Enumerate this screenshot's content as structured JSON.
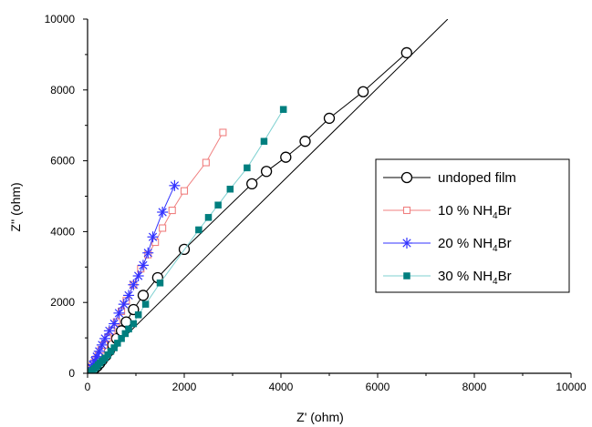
{
  "chart_data": {
    "type": "scatter",
    "title": "",
    "xlabel": "Z' (ohm)",
    "ylabel": "Z'' (ohm)",
    "xlim": [
      0,
      10000
    ],
    "ylim": [
      0,
      10000
    ],
    "x_ticks": [
      0,
      2000,
      4000,
      6000,
      8000,
      10000
    ],
    "y_ticks": [
      0,
      2000,
      4000,
      6000,
      8000,
      10000
    ],
    "x_tick_labels": [
      "0",
      "2000",
      "4000",
      "6000",
      "8000",
      "10000"
    ],
    "y_tick_labels": [
      "0",
      "2000",
      "4000",
      "6000",
      "8000",
      "10000"
    ],
    "grid": false,
    "legend_position": "right-center",
    "series": [
      {
        "name": "undoped film",
        "legend_main": "undoped film",
        "legend_sub": "",
        "legend_tail": "",
        "marker": "open-circle",
        "line_color": "#000000",
        "marker_color": "#000000",
        "points": [
          [
            60,
            40
          ],
          [
            100,
            90
          ],
          [
            150,
            140
          ],
          [
            200,
            200
          ],
          [
            250,
            280
          ],
          [
            300,
            370
          ],
          [
            380,
            500
          ],
          [
            450,
            640
          ],
          [
            520,
            800
          ],
          [
            600,
            980
          ],
          [
            700,
            1200
          ],
          [
            800,
            1450
          ],
          [
            950,
            1800
          ],
          [
            1150,
            2200
          ],
          [
            1450,
            2700
          ],
          [
            2000,
            3500
          ],
          [
            3400,
            5350
          ],
          [
            3700,
            5700
          ],
          [
            4100,
            6100
          ],
          [
            4500,
            6550
          ],
          [
            5000,
            7200
          ],
          [
            5700,
            7950
          ],
          [
            6600,
            9050
          ]
        ],
        "fit_line": [
          [
            0,
            0
          ],
          [
            7450,
            10000
          ]
        ]
      },
      {
        "name": "10 % NH4Br",
        "legend_main": "10 % NH",
        "legend_sub": "4",
        "legend_tail": "Br",
        "marker": "open-square",
        "line_color": "#f08080",
        "marker_color": "#f08080",
        "points": [
          [
            40,
            60
          ],
          [
            70,
            130
          ],
          [
            100,
            210
          ],
          [
            140,
            300
          ],
          [
            180,
            400
          ],
          [
            230,
            520
          ],
          [
            280,
            660
          ],
          [
            340,
            800
          ],
          [
            420,
            1000
          ],
          [
            500,
            1200
          ],
          [
            600,
            1450
          ],
          [
            700,
            1750
          ],
          [
            800,
            2050
          ],
          [
            950,
            2500
          ],
          [
            1100,
            2950
          ],
          [
            1250,
            3350
          ],
          [
            1400,
            3700
          ],
          [
            1550,
            4100
          ],
          [
            1750,
            4600
          ],
          [
            2000,
            5150
          ],
          [
            2450,
            5950
          ],
          [
            2800,
            6800
          ]
        ]
      },
      {
        "name": "20 % NH4Br",
        "legend_main": "20 % NH",
        "legend_sub": "4",
        "legend_tail": "Br",
        "marker": "asterisk",
        "line_color": "#3333ff",
        "marker_color": "#3333ff",
        "points": [
          [
            50,
            80
          ],
          [
            80,
            160
          ],
          [
            110,
            240
          ],
          [
            150,
            350
          ],
          [
            190,
            470
          ],
          [
            240,
            620
          ],
          [
            300,
            800
          ],
          [
            360,
            980
          ],
          [
            450,
            1200
          ],
          [
            550,
            1400
          ],
          [
            650,
            1700
          ],
          [
            750,
            1950
          ],
          [
            850,
            2200
          ],
          [
            950,
            2500
          ],
          [
            1050,
            2750
          ],
          [
            1150,
            3050
          ],
          [
            1250,
            3400
          ],
          [
            1350,
            3850
          ],
          [
            1550,
            4550
          ],
          [
            1800,
            5300
          ]
        ]
      },
      {
        "name": "30 % NH4Br",
        "legend_main": "30 % NH",
        "legend_sub": "4",
        "legend_tail": "Br",
        "marker": "filled-square",
        "line_color": "#7fd1d1",
        "marker_color": "#007f7f",
        "points": [
          [
            60,
            40
          ],
          [
            100,
            80
          ],
          [
            140,
            130
          ],
          [
            180,
            180
          ],
          [
            220,
            240
          ],
          [
            260,
            300
          ],
          [
            310,
            360
          ],
          [
            360,
            430
          ],
          [
            420,
            520
          ],
          [
            480,
            620
          ],
          [
            550,
            720
          ],
          [
            620,
            850
          ],
          [
            700,
            980
          ],
          [
            780,
            1120
          ],
          [
            850,
            1250
          ],
          [
            950,
            1400
          ],
          [
            1050,
            1650
          ],
          [
            1200,
            1950
          ],
          [
            1500,
            2550
          ],
          [
            2300,
            4050
          ],
          [
            2500,
            4400
          ],
          [
            2700,
            4750
          ],
          [
            2950,
            5200
          ],
          [
            3300,
            5800
          ],
          [
            3650,
            6550
          ],
          [
            4050,
            7450
          ]
        ]
      }
    ]
  }
}
